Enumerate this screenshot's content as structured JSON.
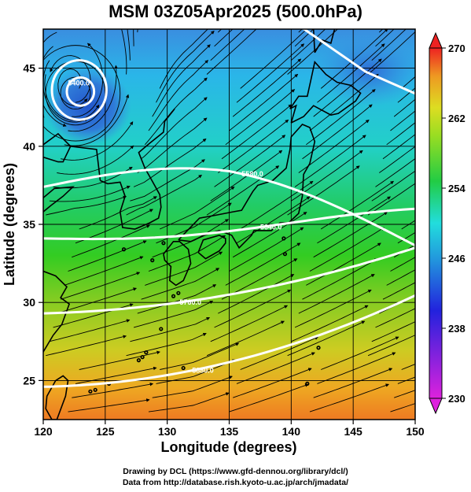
{
  "title": "MSM 03Z05Apr2025 (500.0hPa)",
  "x_axis": {
    "label": "Longitude (degrees)",
    "range": [
      120,
      150
    ],
    "ticks": [
      "120",
      "125",
      "130",
      "135",
      "140",
      "145",
      "150"
    ]
  },
  "y_axis": {
    "label": "Latitude  (degrees)",
    "range": [
      22.5,
      47.5
    ],
    "ticks": [
      "25",
      "30",
      "35",
      "40",
      "45"
    ]
  },
  "colorbar": {
    "range": [
      230,
      270
    ],
    "ticks": [
      "230",
      "238",
      "246",
      "254",
      "262",
      "270"
    ],
    "colors": [
      "#dd22dd",
      "#2222dd",
      "#22dddd",
      "#22cc22",
      "#dddd22",
      "#ee8822",
      "#ee2222"
    ]
  },
  "contours": [
    {
      "label": "5400.0",
      "lat_at_120": 44.3
    },
    {
      "label": "5580.0",
      "lat_at_120": 37.4
    },
    {
      "label": "5640.0",
      "lat_at_120": 34.1
    },
    {
      "label": "5760.0",
      "lat_at_120": 29.3
    },
    {
      "label": "5880.0",
      "lat_at_120": 24.6
    }
  ],
  "credits": {
    "line1": "Drawing by DCL (https://www.gfd-dennou.org/library/dcl/)",
    "line2": "Data from http://database.rish.kyoto-u.ac.jp/arch/jmadata/"
  }
}
